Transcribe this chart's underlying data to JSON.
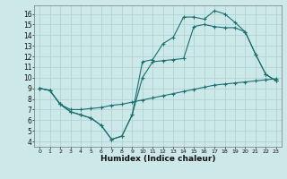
{
  "xlabel": "Humidex (Indice chaleur)",
  "background_color": "#cce8e8",
  "grid_color": "#aacfcf",
  "line_color": "#1a7070",
  "xlim": [
    -0.5,
    23.5
  ],
  "ylim": [
    3.5,
    16.8
  ],
  "yticks": [
    4,
    5,
    6,
    7,
    8,
    9,
    10,
    11,
    12,
    13,
    14,
    15,
    16
  ],
  "xticks": [
    0,
    1,
    2,
    3,
    4,
    5,
    6,
    7,
    8,
    9,
    10,
    11,
    12,
    13,
    14,
    15,
    16,
    17,
    18,
    19,
    20,
    21,
    22,
    23
  ],
  "series1_x": [
    0,
    1,
    2,
    3,
    4,
    5,
    6,
    7,
    8,
    9,
    10,
    11,
    12,
    13,
    14,
    15,
    16,
    17,
    18,
    19,
    20,
    21,
    22,
    23
  ],
  "series1_y": [
    9.0,
    8.8,
    7.5,
    6.8,
    6.5,
    6.2,
    5.5,
    4.2,
    4.5,
    6.5,
    11.5,
    11.7,
    13.2,
    13.8,
    15.7,
    15.7,
    15.5,
    16.3,
    16.0,
    15.2,
    14.3,
    12.2,
    10.3,
    9.7
  ],
  "series2_x": [
    0,
    1,
    2,
    3,
    4,
    5,
    6,
    7,
    8,
    9,
    10,
    11,
    12,
    13,
    14,
    15,
    16,
    17,
    18,
    19,
    20,
    21,
    22,
    23
  ],
  "series2_y": [
    9.0,
    8.8,
    7.5,
    6.8,
    6.5,
    6.2,
    5.5,
    4.2,
    4.5,
    6.5,
    10.0,
    11.5,
    11.6,
    11.7,
    11.8,
    14.8,
    15.0,
    14.8,
    14.7,
    14.7,
    14.3,
    12.2,
    10.3,
    9.7
  ],
  "series3_x": [
    0,
    1,
    2,
    3,
    4,
    5,
    6,
    7,
    8,
    9,
    10,
    11,
    12,
    13,
    14,
    15,
    16,
    17,
    18,
    19,
    20,
    21,
    22,
    23
  ],
  "series3_y": [
    9.0,
    8.8,
    7.5,
    7.0,
    7.0,
    7.1,
    7.2,
    7.4,
    7.5,
    7.7,
    7.9,
    8.1,
    8.3,
    8.5,
    8.7,
    8.9,
    9.1,
    9.3,
    9.4,
    9.5,
    9.6,
    9.7,
    9.8,
    9.9
  ]
}
